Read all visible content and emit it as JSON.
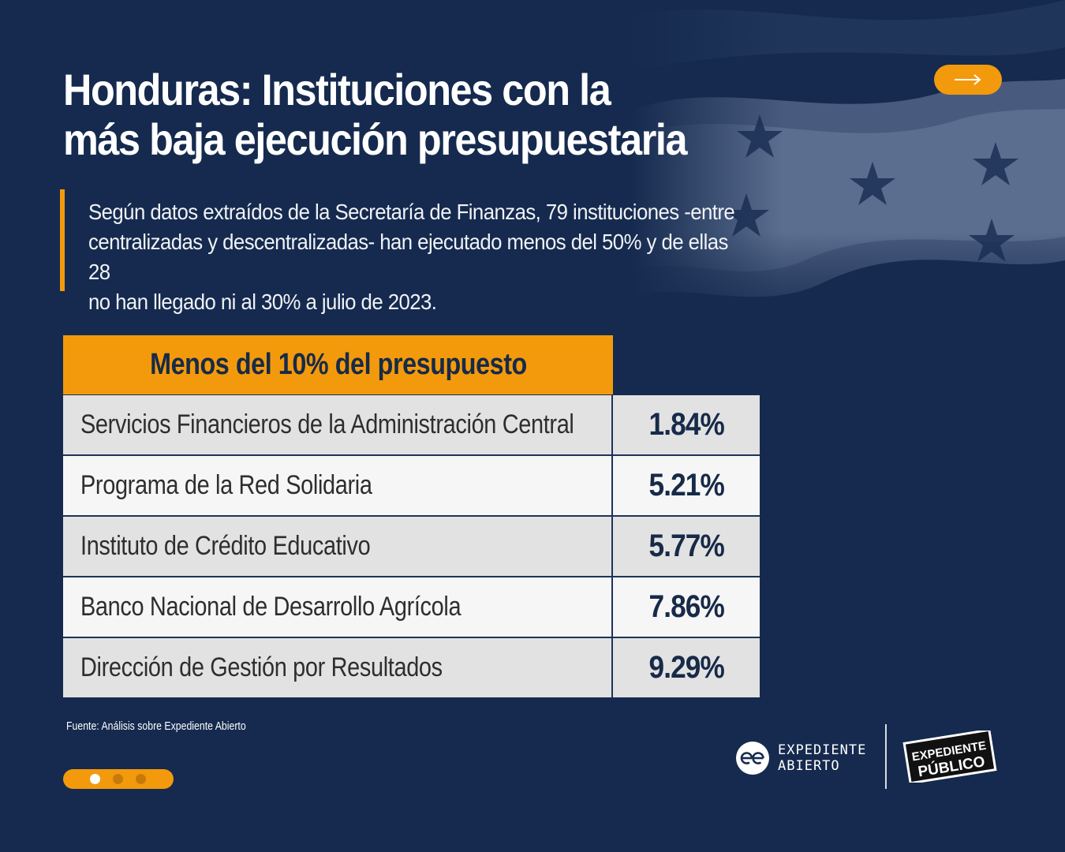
{
  "header": {
    "title_line1": "Honduras: Instituciones con la",
    "title_line2": "más baja ejecución presupuestaria",
    "next_icon": "arrow-right-icon"
  },
  "intro": {
    "line1": "Según datos extraídos de la Secretaría de Finanzas, 79 instituciones -entre",
    "line2": "centralizadas y descentralizadas- han ejecutado menos del 50% y de ellas 28",
    "line3": "no han llegado ni al 30% a julio de 2023."
  },
  "table": {
    "header": "Menos del 10% del presupuesto",
    "rows": [
      {
        "name": "Servicios Financieros de la Administración Central",
        "value": "1.84%"
      },
      {
        "name": "Programa de la Red Solidaria",
        "value": "5.21%"
      },
      {
        "name": "Instituto de Crédito Educativo",
        "value": "5.77%"
      },
      {
        "name": "Banco Nacional de Desarrollo Agrícola",
        "value": "7.86%"
      },
      {
        "name": "Dirección de Gestión por Resultados",
        "value": "9.29%"
      }
    ]
  },
  "source": "Fuente: Análisis sobre Expediente Abierto",
  "pager": {
    "current": 1,
    "total": 3
  },
  "logos": {
    "expediente_abierto_line1": "EXPEDIENTE",
    "expediente_abierto_line2": "ABIERTO",
    "expediente_publico_line1": "EXPEDIENTE",
    "expediente_publico_line2": "PÚBLICO"
  },
  "colors": {
    "background": "#152a4e",
    "accent": "#f39a0c",
    "row_shade": "#e2e2e2",
    "row_light": "#f6f6f6",
    "value_text": "#172a48"
  }
}
